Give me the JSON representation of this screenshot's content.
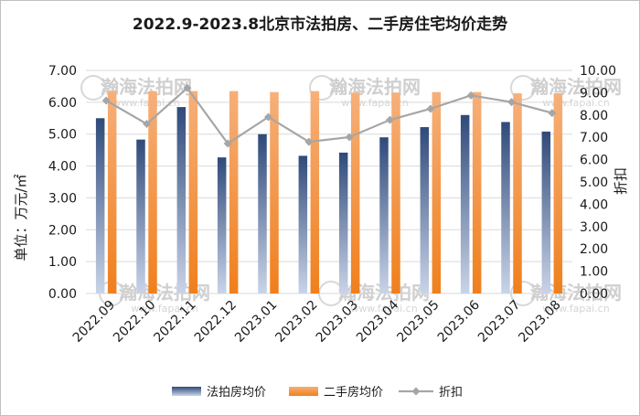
{
  "title": "2022.9-2023.8北京市法拍房、二手房住宅均价走势",
  "watermark": {
    "name": "瀚海法拍网",
    "url": "www.fapai.cn"
  },
  "chart_data": {
    "type": "bar",
    "categories": [
      "2022.09",
      "2022.10",
      "2022.11",
      "2022.12",
      "2023.01",
      "2023.02",
      "2023.03",
      "2023.04",
      "2023.05",
      "2023.06",
      "2023.07",
      "2023.08"
    ],
    "series": [
      {
        "name": "法拍房均价",
        "axis": "left",
        "kind": "bar",
        "color": "#3e5a8c",
        "values": [
          5.5,
          4.83,
          5.85,
          4.27,
          5.0,
          4.32,
          4.42,
          4.9,
          5.22,
          5.6,
          5.38,
          5.08
        ]
      },
      {
        "name": "二手房均价",
        "axis": "left",
        "kind": "bar",
        "color": "#f28a2a",
        "values": [
          6.35,
          6.35,
          6.35,
          6.35,
          6.32,
          6.35,
          6.3,
          6.3,
          6.32,
          6.32,
          6.28,
          6.28
        ]
      },
      {
        "name": "折扣",
        "axis": "right",
        "kind": "line",
        "color": "#a6a6a6",
        "values": [
          8.65,
          7.6,
          9.21,
          6.72,
          7.91,
          6.8,
          7.01,
          7.78,
          8.28,
          8.88,
          8.58,
          8.09
        ]
      }
    ],
    "ylabel": "单位：万元/㎡",
    "y2label": "折扣",
    "ylim": [
      0,
      7
    ],
    "y2lim": [
      0,
      10
    ],
    "yticks": [
      "0.00",
      "1.00",
      "2.00",
      "3.00",
      "4.00",
      "5.00",
      "6.00",
      "7.00"
    ],
    "y2ticks": [
      "0.00",
      "1.00",
      "2.00",
      "3.00",
      "4.00",
      "5.00",
      "6.00",
      "7.00",
      "8.00",
      "9.00",
      "10.00"
    ],
    "grid": true,
    "legend_position": "bottom"
  }
}
